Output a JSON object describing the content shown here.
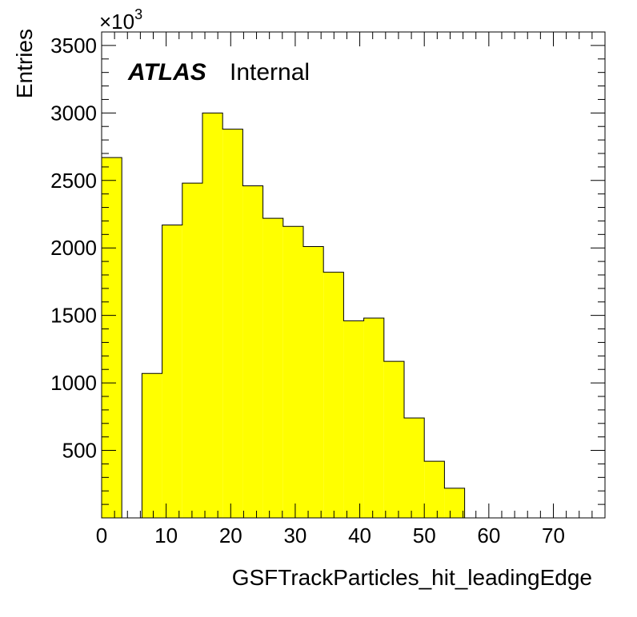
{
  "chart_data": {
    "type": "bar",
    "style": "histogram",
    "xlabel": "GSFTrackParticles_hit_leadingEdge",
    "ylabel": "Entries",
    "y_multiplier": "×10",
    "y_multiplier_exponent": "3",
    "xlim": [
      0,
      78
    ],
    "ylim": [
      0,
      3600
    ],
    "x_ticks": [
      "0",
      "10",
      "20",
      "30",
      "40",
      "50",
      "60",
      "70"
    ],
    "y_ticks": [
      "500",
      "1000",
      "1500",
      "2000",
      "2500",
      "3000",
      "3500"
    ],
    "bin_width": 3.125,
    "bins": [
      {
        "x_low": 0.0,
        "value": 2670
      },
      {
        "x_low": 3.125,
        "value": 0
      },
      {
        "x_low": 6.25,
        "value": 1070
      },
      {
        "x_low": 9.375,
        "value": 2170
      },
      {
        "x_low": 12.5,
        "value": 2480
      },
      {
        "x_low": 15.625,
        "value": 3000
      },
      {
        "x_low": 18.75,
        "value": 2880
      },
      {
        "x_low": 21.875,
        "value": 2460
      },
      {
        "x_low": 25.0,
        "value": 2220
      },
      {
        "x_low": 28.125,
        "value": 2160
      },
      {
        "x_low": 31.25,
        "value": 2010
      },
      {
        "x_low": 34.375,
        "value": 1820
      },
      {
        "x_low": 37.5,
        "value": 1460
      },
      {
        "x_low": 40.625,
        "value": 1480
      },
      {
        "x_low": 43.75,
        "value": 1160
      },
      {
        "x_low": 46.875,
        "value": 740
      },
      {
        "x_low": 50.0,
        "value": 420
      },
      {
        "x_low": 53.125,
        "value": 220
      }
    ],
    "fill_color": "#ffff00",
    "line_color": "#000000",
    "grid": false,
    "annotations": {
      "experiment": "ATLAS",
      "status": "Internal"
    }
  }
}
